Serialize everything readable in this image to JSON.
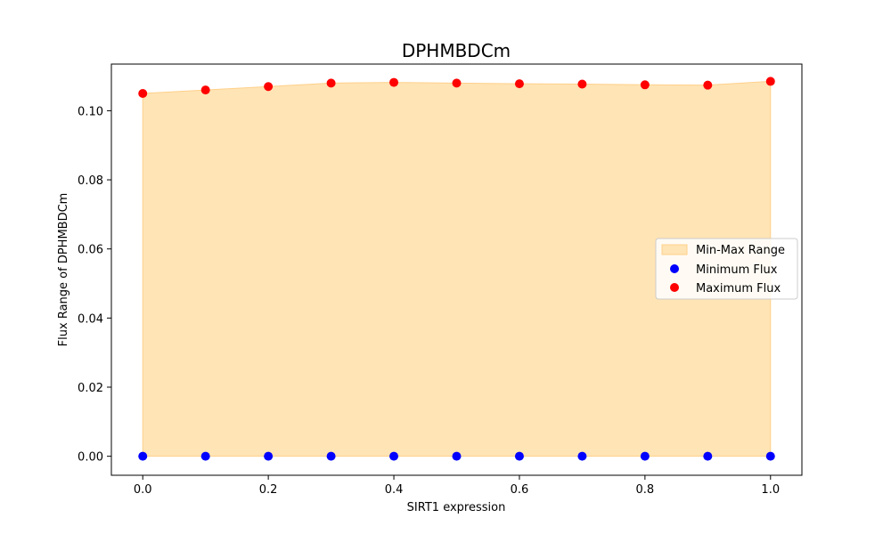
{
  "chart_data": {
    "type": "scatter",
    "title": "DPHMBDCm",
    "xlabel": "SIRT1 expression",
    "ylabel": "Flux Range of DPHMBDCm",
    "xlim": [
      -0.05,
      1.05
    ],
    "ylim": [
      -0.0055,
      0.1135
    ],
    "x_ticks": [
      "0.0",
      "0.2",
      "0.4",
      "0.6",
      "0.8",
      "1.0"
    ],
    "y_ticks": [
      "0.00",
      "0.02",
      "0.04",
      "0.06",
      "0.08",
      "0.10"
    ],
    "x": [
      0.0,
      0.1,
      0.2,
      0.3,
      0.4,
      0.5,
      0.6,
      0.7,
      0.8,
      0.9,
      1.0
    ],
    "series": [
      {
        "name": "Minimum Flux",
        "color": "#0000ff",
        "values": [
          0,
          0,
          0,
          0,
          0,
          0,
          0,
          0,
          0,
          0,
          0
        ]
      },
      {
        "name": "Maximum Flux",
        "color": "#ff0000",
        "values": [
          0.105,
          0.106,
          0.107,
          0.108,
          0.1082,
          0.108,
          0.1078,
          0.1077,
          0.1075,
          0.1074,
          0.1085
        ]
      }
    ],
    "range_fill": {
      "name": "Min-Max Range",
      "color": "#ffe4b5",
      "edge": "#ffd08a"
    },
    "legend_position": "center-right",
    "grid": false
  }
}
